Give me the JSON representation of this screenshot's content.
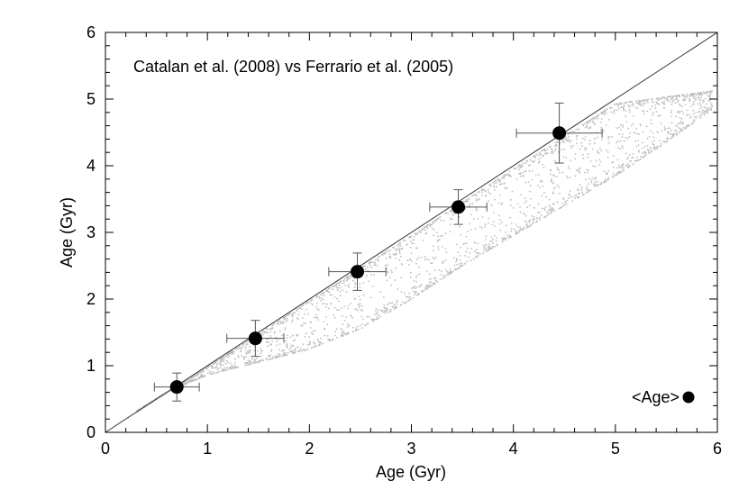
{
  "chart_data": {
    "type": "scatter",
    "title": "Catalan et al. (2008) vs Ferrario et al. (2005)",
    "xlabel": "Age (Gyr)",
    "ylabel": "Age (Gyr)",
    "xlim": [
      0,
      6
    ],
    "ylim": [
      0,
      6
    ],
    "xticks": [
      "0",
      "1",
      "2",
      "3",
      "4",
      "5",
      "6"
    ],
    "yticks": [
      "0",
      "1",
      "2",
      "3",
      "4",
      "5",
      "6"
    ],
    "grid": false,
    "reference_line": {
      "label": "",
      "x": [
        0,
        6
      ],
      "y": [
        0,
        6
      ]
    },
    "background_points": {
      "color": "#bdbdbd",
      "count": 2600,
      "lower_envelope": {
        "x": [
          0.3,
          0.6,
          1.0,
          1.5,
          2.0,
          2.5,
          3.0,
          3.5,
          4.0,
          4.5,
          5.0,
          5.5,
          5.95
        ],
        "y": [
          0.32,
          0.6,
          0.86,
          1.05,
          1.25,
          1.55,
          2.0,
          2.5,
          2.95,
          3.4,
          3.85,
          4.35,
          4.85
        ]
      },
      "upper_envelope": {
        "x": [
          0.3,
          1.0,
          2.0,
          3.0,
          4.0,
          5.0,
          5.95
        ],
        "y": [
          0.3,
          0.98,
          1.97,
          2.95,
          3.95,
          4.93,
          5.12
        ]
      }
    },
    "series": [
      {
        "name": "<Age>",
        "color": "#000000",
        "points": [
          {
            "x": 0.7,
            "y": 0.68,
            "xerr": 0.22,
            "yerr": 0.21
          },
          {
            "x": 1.47,
            "y": 1.41,
            "xerr": 0.28,
            "yerr": 0.27
          },
          {
            "x": 2.47,
            "y": 2.41,
            "xerr": 0.28,
            "yerr": 0.28
          },
          {
            "x": 3.46,
            "y": 3.38,
            "xerr": 0.28,
            "yerr": 0.26
          },
          {
            "x": 4.45,
            "y": 4.49,
            "xerr": 0.42,
            "yerr": 0.45
          }
        ]
      }
    ],
    "legend": {
      "label": "<Age>",
      "position": "bottom-right"
    }
  }
}
